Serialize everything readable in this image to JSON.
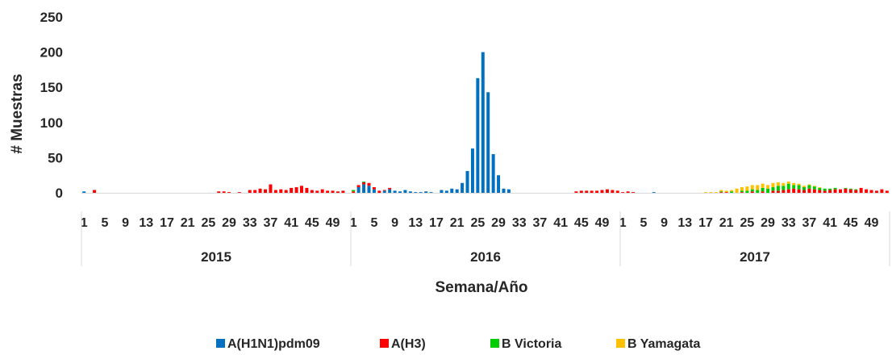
{
  "chart_data": {
    "type": "bar",
    "stacked": true,
    "title": "",
    "xlabel": "Semana/Año",
    "ylabel": "# Muestras",
    "ylim": [
      0,
      250
    ],
    "yticks": [
      0,
      50,
      100,
      150,
      200,
      250
    ],
    "grid": false,
    "legend_position": "bottom",
    "weeks_per_year": 52,
    "week_tick_labels": [
      "1",
      "5",
      "9",
      "13",
      "17",
      "21",
      "25",
      "29",
      "33",
      "37",
      "41",
      "45",
      "49"
    ],
    "years": [
      "2015",
      "2016",
      "2017"
    ],
    "series": [
      {
        "name": "A(H1N1)pdm09",
        "color": "#0070C0",
        "values": {
          "2015": {
            "1": 2
          },
          "2016": {
            "2": 8,
            "3": 12,
            "4": 10,
            "5": 5,
            "7": 3,
            "8": 5,
            "9": 3,
            "10": 2,
            "11": 4,
            "12": 2,
            "13": 1,
            "14": 1,
            "15": 2,
            "16": 1,
            "18": 4,
            "19": 3,
            "20": 6,
            "21": 5,
            "22": 14,
            "23": 31,
            "24": 63,
            "25": 163,
            "26": 200,
            "27": 143,
            "28": 55,
            "29": 25,
            "30": 6,
            "31": 5
          },
          "2017": {
            "7": 1
          }
        }
      },
      {
        "name": "A(H3)",
        "color": "#FF0000",
        "values": {
          "2015": {
            "3": 4,
            "27": 2,
            "28": 2,
            "29": 1,
            "31": 1,
            "33": 4,
            "34": 4,
            "35": 6,
            "36": 5,
            "37": 12,
            "38": 4,
            "39": 5,
            "40": 4,
            "41": 7,
            "42": 8,
            "43": 10,
            "44": 7,
            "45": 4,
            "46": 3,
            "47": 5,
            "48": 3,
            "49": 3,
            "50": 2,
            "51": 3
          },
          "2016": {
            "1": 2,
            "2": 3,
            "3": 3,
            "4": 4,
            "5": 3,
            "6": 3,
            "7": 1,
            "8": 2,
            "44": 2,
            "45": 3,
            "46": 3,
            "47": 3,
            "48": 3,
            "49": 4,
            "50": 5,
            "51": 4,
            "52": 3
          },
          "2017": {
            "1": 1,
            "2": 2,
            "3": 1,
            "20": 1,
            "21": 1,
            "24": 1,
            "26": 2,
            "28": 2,
            "30": 3,
            "31": 3,
            "32": 4,
            "33": 5,
            "34": 6,
            "35": 5,
            "36": 4,
            "37": 6,
            "38": 5,
            "39": 4,
            "40": 3,
            "41": 4,
            "42": 5,
            "43": 5,
            "44": 6,
            "45": 5,
            "46": 4,
            "47": 7,
            "48": 5,
            "49": 4,
            "50": 3,
            "51": 5,
            "52": 3
          }
        }
      },
      {
        "name": "B Victoria",
        "color": "#00CC00",
        "values": {
          "2015": {},
          "2016": {
            "1": 2,
            "3": 1
          },
          "2017": {
            "20": 1,
            "22": 2,
            "24": 2,
            "25": 3,
            "26": 3,
            "27": 4,
            "28": 5,
            "29": 6,
            "30": 5,
            "31": 7,
            "32": 6,
            "33": 8,
            "34": 5,
            "35": 6,
            "36": 4,
            "37": 5,
            "38": 4,
            "39": 3,
            "40": 3,
            "41": 2,
            "42": 2,
            "44": 1,
            "45": 1,
            "46": 1
          }
        }
      },
      {
        "name": "B Yamagata",
        "color": "#FFC000",
        "values": {
          "2015": {},
          "2016": {},
          "2017": {
            "17": 1,
            "18": 1,
            "19": 1,
            "20": 2,
            "21": 2,
            "22": 2,
            "23": 6,
            "24": 5,
            "25": 6,
            "26": 6,
            "27": 7,
            "28": 6,
            "29": 5,
            "30": 6,
            "31": 5,
            "32": 4,
            "33": 3,
            "34": 3,
            "35": 2,
            "36": 2,
            "37": 1,
            "38": 1,
            "39": 1
          }
        }
      }
    ]
  }
}
